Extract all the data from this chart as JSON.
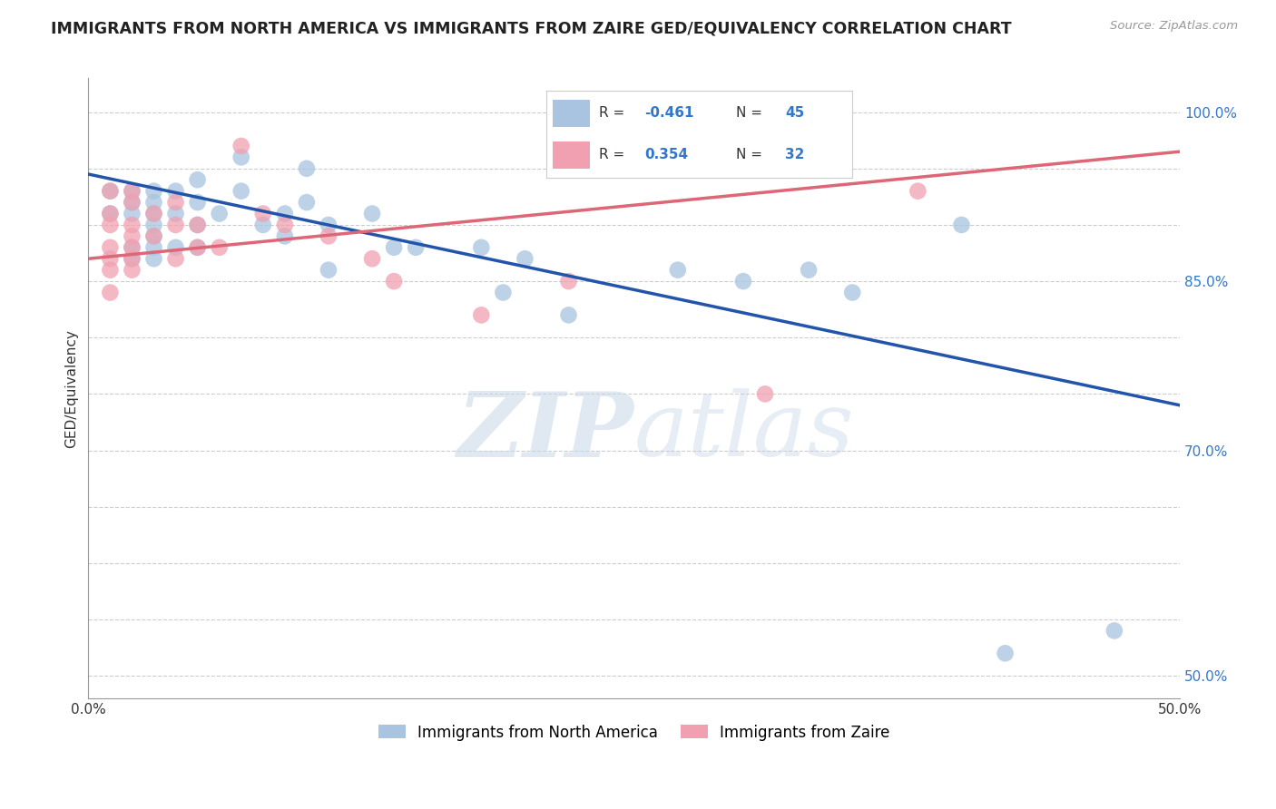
{
  "title": "IMMIGRANTS FROM NORTH AMERICA VS IMMIGRANTS FROM ZAIRE GED/EQUIVALENCY CORRELATION CHART",
  "source": "Source: ZipAtlas.com",
  "ylabel": "GED/Equivalency",
  "xmin": 0.0,
  "xmax": 0.5,
  "ymin": 0.48,
  "ymax": 1.03,
  "x_ticks": [
    0.0,
    0.1,
    0.2,
    0.3,
    0.4,
    0.5
  ],
  "x_tick_labels": [
    "0.0%",
    "",
    "",
    "",
    "",
    "50.0%"
  ],
  "y_ticks": [
    0.5,
    0.55,
    0.6,
    0.65,
    0.7,
    0.75,
    0.8,
    0.85,
    0.9,
    0.95,
    1.0
  ],
  "y_tick_labels": [
    "50.0%",
    "",
    "",
    "",
    "70.0%",
    "",
    "",
    "85.0%",
    "",
    "",
    "100.0%"
  ],
  "blue_R": -0.461,
  "blue_N": 45,
  "pink_R": 0.354,
  "pink_N": 32,
  "blue_color": "#a8c4e0",
  "pink_color": "#f0a0b0",
  "blue_line_color": "#2255aa",
  "pink_line_color": "#dd6677",
  "blue_label": "Immigrants from North America",
  "pink_label": "Immigrants from Zaire",
  "blue_scatter_x": [
    0.01,
    0.01,
    0.02,
    0.02,
    0.02,
    0.02,
    0.02,
    0.03,
    0.03,
    0.03,
    0.03,
    0.03,
    0.03,
    0.03,
    0.04,
    0.04,
    0.04,
    0.05,
    0.05,
    0.05,
    0.05,
    0.06,
    0.07,
    0.07,
    0.08,
    0.09,
    0.09,
    0.1,
    0.1,
    0.11,
    0.11,
    0.13,
    0.14,
    0.15,
    0.18,
    0.19,
    0.2,
    0.22,
    0.27,
    0.3,
    0.33,
    0.35,
    0.4,
    0.42,
    0.47
  ],
  "blue_scatter_y": [
    0.93,
    0.91,
    0.93,
    0.92,
    0.91,
    0.88,
    0.87,
    0.93,
    0.92,
    0.91,
    0.9,
    0.89,
    0.88,
    0.87,
    0.93,
    0.91,
    0.88,
    0.94,
    0.92,
    0.9,
    0.88,
    0.91,
    0.96,
    0.93,
    0.9,
    0.91,
    0.89,
    0.95,
    0.92,
    0.9,
    0.86,
    0.91,
    0.88,
    0.88,
    0.88,
    0.84,
    0.87,
    0.82,
    0.86,
    0.85,
    0.86,
    0.84,
    0.9,
    0.52,
    0.54
  ],
  "pink_scatter_x": [
    0.01,
    0.01,
    0.01,
    0.01,
    0.01,
    0.01,
    0.01,
    0.02,
    0.02,
    0.02,
    0.02,
    0.02,
    0.02,
    0.02,
    0.03,
    0.03,
    0.04,
    0.04,
    0.04,
    0.05,
    0.05,
    0.06,
    0.07,
    0.08,
    0.09,
    0.11,
    0.13,
    0.14,
    0.18,
    0.22,
    0.31,
    0.38
  ],
  "pink_scatter_y": [
    0.93,
    0.91,
    0.9,
    0.88,
    0.87,
    0.86,
    0.84,
    0.93,
    0.92,
    0.9,
    0.89,
    0.88,
    0.87,
    0.86,
    0.91,
    0.89,
    0.92,
    0.9,
    0.87,
    0.9,
    0.88,
    0.88,
    0.97,
    0.91,
    0.9,
    0.89,
    0.87,
    0.85,
    0.82,
    0.85,
    0.75,
    0.93
  ],
  "blue_trendline_x": [
    0.0,
    0.5
  ],
  "blue_trendline_y": [
    0.945,
    0.74
  ],
  "pink_trendline_x": [
    0.0,
    0.5
  ],
  "pink_trendline_y": [
    0.87,
    0.965
  ],
  "watermark_zip": "ZIP",
  "watermark_atlas": "atlas",
  "background_color": "#ffffff",
  "grid_color": "#cccccc",
  "legend_R_color": "#3377cc",
  "legend_N_color": "#3377cc"
}
